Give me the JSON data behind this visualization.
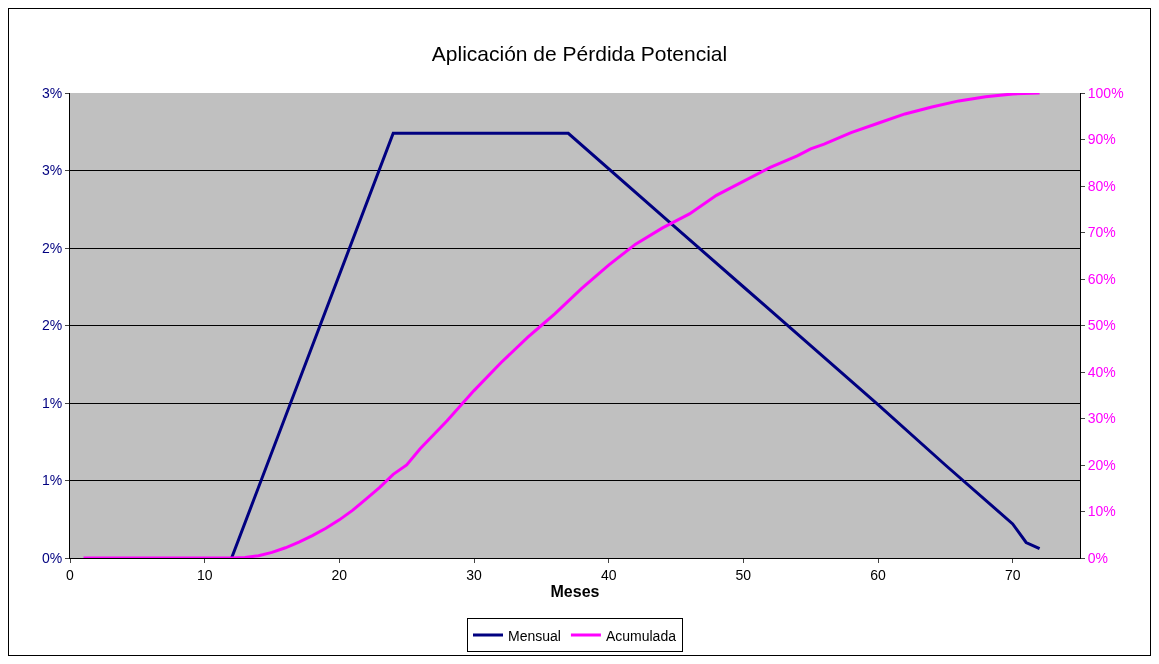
{
  "chart_data": {
    "type": "line",
    "title": "Aplicación de Pérdida Potencial",
    "xlabel": "Meses",
    "xlim": [
      0,
      75
    ],
    "xticks": [
      0,
      10,
      20,
      30,
      40,
      50,
      60,
      70
    ],
    "ylim": [
      0,
      3
    ],
    "yticks": [
      {
        "value": 0,
        "label": "0%"
      },
      {
        "value": 0.5,
        "label": "1%"
      },
      {
        "value": 1,
        "label": "1%"
      },
      {
        "value": 1.5,
        "label": "2%"
      },
      {
        "value": 2,
        "label": "2%"
      },
      {
        "value": 2.5,
        "label": "3%"
      },
      {
        "value": 3,
        "label": "3%"
      }
    ],
    "y2lim": [
      0,
      100
    ],
    "y2ticks": [
      {
        "value": 0,
        "label": "0%"
      },
      {
        "value": 10,
        "label": "10%"
      },
      {
        "value": 20,
        "label": "20%"
      },
      {
        "value": 30,
        "label": "30%"
      },
      {
        "value": 40,
        "label": "40%"
      },
      {
        "value": 50,
        "label": "50%"
      },
      {
        "value": 60,
        "label": "60%"
      },
      {
        "value": 70,
        "label": "70%"
      },
      {
        "value": 80,
        "label": "80%"
      },
      {
        "value": 90,
        "label": "90%"
      },
      {
        "value": 100,
        "label": "100%"
      }
    ],
    "grid": "y",
    "legend": "bottom",
    "marker": "none",
    "line_style": "solid",
    "series": [
      {
        "name": "Mensual",
        "color": "#000080",
        "x": [
          12,
          24,
          37,
          45,
          50,
          55,
          60,
          65,
          70,
          71,
          72
        ],
        "values": [
          0,
          2.74,
          2.74,
          2.13,
          1.75,
          1.37,
          0.99,
          0.6,
          0.22,
          0.1,
          0.06
        ]
      },
      {
        "name": "Acumulada",
        "color": "#ff00ff",
        "axis": "y2",
        "x": [
          1,
          11,
          12,
          13,
          14,
          15,
          16,
          17,
          18,
          19,
          20,
          21,
          22,
          23,
          24,
          25,
          26,
          28,
          30,
          32,
          34,
          35,
          36,
          38,
          40,
          42,
          44,
          45,
          46,
          48,
          50,
          52,
          54,
          55,
          56,
          58,
          60,
          62,
          64,
          66,
          68,
          70,
          72
        ],
        "values": [
          0,
          0,
          0,
          0.1,
          0.5,
          1.2,
          2.2,
          3.4,
          4.8,
          6.4,
          8.2,
          10.3,
          12.7,
          15.2,
          18,
          20,
          23.5,
          29.5,
          36,
          42,
          47.5,
          50,
          52.5,
          58,
          63,
          67.5,
          71,
          72.5,
          74,
          78,
          81,
          84,
          86.5,
          88,
          89,
          91.5,
          93.5,
          95.5,
          97,
          98.3,
          99.2,
          99.8,
          100
        ]
      }
    ]
  }
}
